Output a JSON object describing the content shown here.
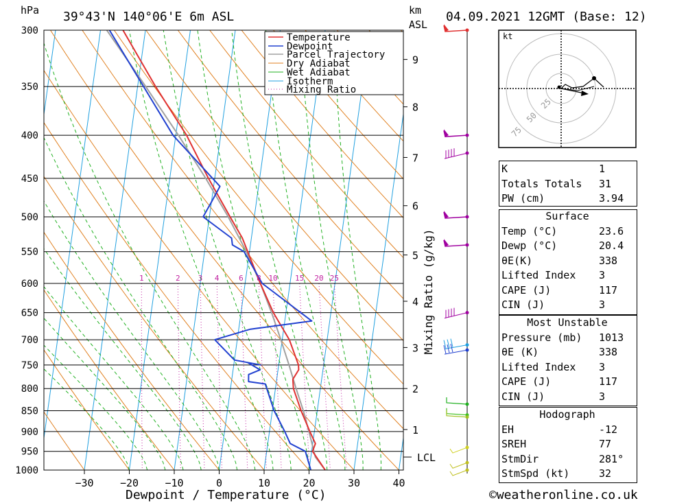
{
  "header": {
    "pressure_unit": "hPa",
    "location": "39°43'N 140°06'E 6m ASL",
    "height_unit": "km",
    "height_unit_sub": "ASL",
    "datetime": "04.09.2021 12GMT (Base: 12)"
  },
  "chart_data": {
    "type": "skew-t",
    "xlabel": "Dewpoint / Temperature (°C)",
    "ylabel_right": "Mixing Ratio (g/kg)",
    "pressure_ticks": [
      300,
      350,
      400,
      450,
      500,
      550,
      600,
      650,
      700,
      750,
      800,
      850,
      900,
      950,
      1000
    ],
    "temp_ticks": [
      -30,
      -20,
      -10,
      0,
      10,
      20,
      30,
      40
    ],
    "height_km_ticks": [
      {
        "label": "9",
        "p": 325
      },
      {
        "label": "8",
        "p": 370
      },
      {
        "label": "7",
        "p": 425
      },
      {
        "label": "6",
        "p": 485
      },
      {
        "label": "5",
        "p": 555
      },
      {
        "label": "4",
        "p": 630
      },
      {
        "label": "3",
        "p": 715
      },
      {
        "label": "2",
        "p": 800
      },
      {
        "label": "1",
        "p": 895
      }
    ],
    "lcl": {
      "label": "LCL",
      "p": 965
    },
    "mixing_ratio_labels": [
      "1",
      "2",
      "3",
      "4",
      "6",
      "8",
      "10",
      "15",
      "20",
      "25"
    ],
    "legend": [
      "Temperature",
      "Dewpoint",
      "Parcel Trajectory",
      "Dry Adiabat",
      "Wet Adiabat",
      "Isotherm",
      "Mixing Ratio"
    ],
    "temperature": [
      {
        "p": 1000,
        "t": 23.6
      },
      {
        "p": 950,
        "t": 20.2
      },
      {
        "p": 930,
        "t": 20.6
      },
      {
        "p": 900,
        "t": 19.0
      },
      {
        "p": 850,
        "t": 16.4
      },
      {
        "p": 800,
        "t": 14.0
      },
      {
        "p": 780,
        "t": 13.6
      },
      {
        "p": 760,
        "t": 14.6
      },
      {
        "p": 750,
        "t": 14.4
      },
      {
        "p": 700,
        "t": 11.6
      },
      {
        "p": 650,
        "t": 7.2
      },
      {
        "p": 600,
        "t": 3.4
      },
      {
        "p": 550,
        "t": -0.4
      },
      {
        "p": 530,
        "t": -2.0
      },
      {
        "p": 500,
        "t": -5.4
      },
      {
        "p": 450,
        "t": -11.4
      },
      {
        "p": 440,
        "t": -12.6
      },
      {
        "p": 400,
        "t": -17.6
      },
      {
        "p": 350,
        "t": -26.0
      },
      {
        "p": 300,
        "t": -35.0
      }
    ],
    "dewpoint": [
      {
        "p": 1000,
        "t": 20.4
      },
      {
        "p": 950,
        "t": 18.6
      },
      {
        "p": 930,
        "t": 15.0
      },
      {
        "p": 900,
        "t": 13.4
      },
      {
        "p": 850,
        "t": 10.4
      },
      {
        "p": 790,
        "t": 7.6
      },
      {
        "p": 785,
        "t": 3.8
      },
      {
        "p": 770,
        "t": 3.6
      },
      {
        "p": 760,
        "t": 6.0
      },
      {
        "p": 745,
        "t": 3.0
      },
      {
        "p": 750,
        "t": 6.0
      },
      {
        "p": 740,
        "t": 0.0
      },
      {
        "p": 700,
        "t": -5.0
      },
      {
        "p": 680,
        "t": 2.6
      },
      {
        "p": 665,
        "t": 16.0
      },
      {
        "p": 600,
        "t": 3.8
      },
      {
        "p": 550,
        "t": -1.2
      },
      {
        "p": 540,
        "t": -4.0
      },
      {
        "p": 530,
        "t": -4.4
      },
      {
        "p": 500,
        "t": -11.4
      },
      {
        "p": 480,
        "t": -10.0
      },
      {
        "p": 460,
        "t": -8.6
      },
      {
        "p": 400,
        "t": -20.6
      },
      {
        "p": 300,
        "t": -38.0
      }
    ],
    "parcel": [
      {
        "p": 1000,
        "t": 23.6
      },
      {
        "p": 965,
        "t": 21.0
      },
      {
        "p": 900,
        "t": 18.8
      },
      {
        "p": 850,
        "t": 16.9
      },
      {
        "p": 800,
        "t": 14.6
      },
      {
        "p": 750,
        "t": 12.3
      },
      {
        "p": 700,
        "t": 9.7
      },
      {
        "p": 650,
        "t": 6.8
      },
      {
        "p": 600,
        "t": 3.4
      },
      {
        "p": 550,
        "t": -0.7
      },
      {
        "p": 500,
        "t": -5.8
      },
      {
        "p": 450,
        "t": -12.0
      },
      {
        "p": 400,
        "t": -19.4
      },
      {
        "p": 350,
        "t": -28.2
      },
      {
        "p": 300,
        "t": -38.6
      }
    ],
    "hodograph": {
      "unit": "kt",
      "rings": [
        "25",
        "50",
        "75"
      ]
    }
  },
  "indices": {
    "k": {
      "label": "K",
      "value": "1"
    },
    "totals": {
      "label": "Totals Totals",
      "value": "31"
    },
    "pw": {
      "label": "PW (cm)",
      "value": "3.94"
    }
  },
  "surface": {
    "title": "Surface",
    "temp": {
      "label": "Temp (°C)",
      "value": "23.6"
    },
    "dewp": {
      "label": "Dewp (°C)",
      "value": "20.4"
    },
    "theta": {
      "label": "θE(K)",
      "value": "338"
    },
    "li": {
      "label": "Lifted Index",
      "value": "3"
    },
    "cape": {
      "label": "CAPE (J)",
      "value": "117"
    },
    "cin": {
      "label": "CIN (J)",
      "value": "3"
    }
  },
  "most_unstable": {
    "title": "Most Unstable",
    "pressure": {
      "label": "Pressure (mb)",
      "value": "1013"
    },
    "theta": {
      "label": "θE (K)",
      "value": "338"
    },
    "li": {
      "label": "Lifted Index",
      "value": "3"
    },
    "cape": {
      "label": "CAPE (J)",
      "value": "117"
    },
    "cin": {
      "label": "CIN (J)",
      "value": "3"
    }
  },
  "hodograph_table": {
    "title": "Hodograph",
    "eh": {
      "label": "EH",
      "value": "-12"
    },
    "sreh": {
      "label": "SREH",
      "value": "77"
    },
    "stmdir": {
      "label": "StmDir",
      "value": "281°"
    },
    "stmspd": {
      "label": "StmSpd (kt)",
      "value": "32"
    }
  },
  "copyright": "©weatheronline.co.uk",
  "colors": {
    "temperature": "#e03030",
    "dewpoint": "#2040d0",
    "parcel": "#a0a0a0",
    "dry_adiabat": "#e08020",
    "wet_adiabat": "#20b020",
    "isotherm": "#20a0e0",
    "mixing_ratio": "#c020a0"
  }
}
